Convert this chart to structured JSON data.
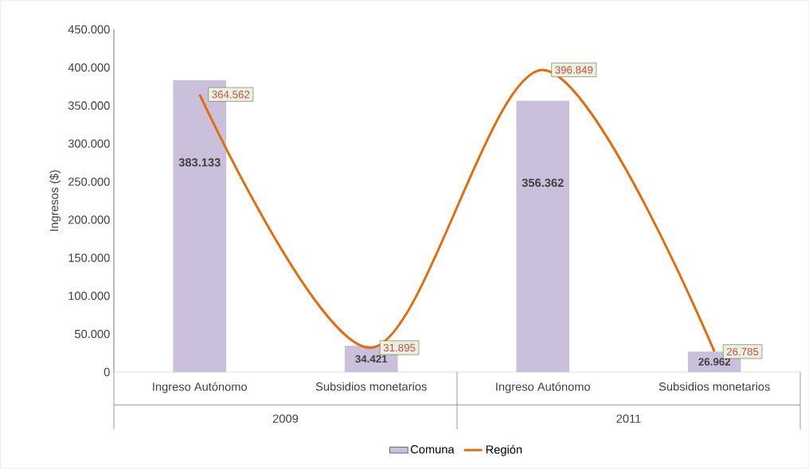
{
  "chart_data": {
    "type": "bar",
    "ylabel": "Ingresos ($)",
    "categories": [
      "Ingreso Autónomo",
      "Subsidios monetarios",
      "Ingreso Autónomo",
      "Subsidios monetarios"
    ],
    "annotations": [
      "2009",
      "2011"
    ],
    "series": [
      {
        "name": "Comuna",
        "color": "#cbc0dc",
        "values": [
          383133,
          34421,
          356362,
          26962
        ],
        "value_labels": [
          "383.133",
          "34.421",
          "356.362",
          "26.962"
        ]
      },
      {
        "name": "Región",
        "type": "line",
        "color": "#e46c0a",
        "values": [
          364562,
          31895,
          396849,
          26785
        ],
        "value_labels": [
          "364.562",
          "31.895",
          "396.849",
          "26.785"
        ],
        "marker": "none"
      }
    ],
    "ylim": [
      0,
      450000
    ],
    "yticks": [
      {
        "value": 0,
        "label": "0"
      },
      {
        "value": 50000,
        "label": "50.000"
      },
      {
        "value": 100000,
        "label": "100.000"
      },
      {
        "value": 150000,
        "label": "150.000"
      },
      {
        "value": 200000,
        "label": "200.000"
      },
      {
        "value": 250000,
        "label": "250.000"
      },
      {
        "value": 300000,
        "label": "300.000"
      },
      {
        "value": 350000,
        "label": "350.000"
      },
      {
        "value": 400000,
        "label": "400.000"
      },
      {
        "value": 450000,
        "label": "450.000"
      }
    ],
    "grid": false,
    "legend": "bottom"
  }
}
